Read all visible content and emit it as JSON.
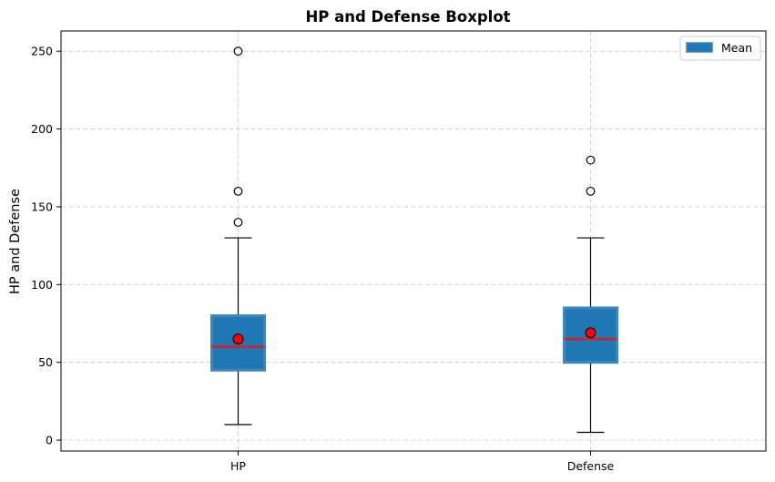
{
  "chart_data": {
    "type": "box",
    "title": "HP and Defense Boxplot",
    "xlabel": "",
    "ylabel": "HP and Defense",
    "categories": [
      "HP",
      "Defense"
    ],
    "boxes": [
      {
        "category": "HP",
        "whisker_low": 10,
        "q1": 45,
        "median": 60,
        "q3": 80,
        "whisker_high": 130,
        "mean": 65,
        "outliers": [
          140,
          160,
          250
        ]
      },
      {
        "category": "Defense",
        "whisker_low": 5,
        "q1": 50,
        "median": 65,
        "q3": 85,
        "whisker_high": 130,
        "mean": 69,
        "outliers": [
          160,
          180
        ]
      }
    ],
    "ylim": [
      -7,
      263
    ],
    "yticks": [
      0,
      50,
      100,
      150,
      200,
      250
    ],
    "grid": true,
    "legend": {
      "position": "top-right",
      "entries": [
        "Mean"
      ]
    },
    "colors": {
      "box_fill": "#1f77b4",
      "box_edge": "#3f86c0",
      "median": "#e41a1c",
      "mean_marker": "#ff0000",
      "grid": "#d3d3d3"
    }
  }
}
